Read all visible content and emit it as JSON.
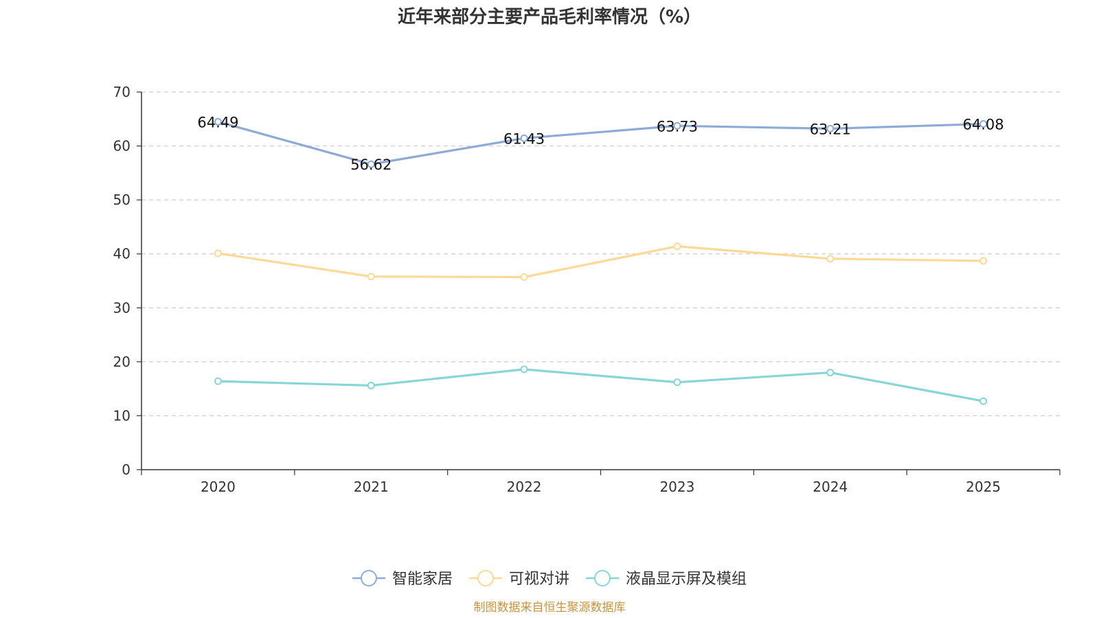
{
  "chart_data": {
    "type": "line",
    "title": "近年来部分主要产品毛利率情况（%）",
    "categories": [
      "2020",
      "2021",
      "2022",
      "2023",
      "2024",
      "2025"
    ],
    "ylim": [
      0,
      70
    ],
    "yticks": [
      0,
      10,
      20,
      30,
      40,
      50,
      60,
      70
    ],
    "grid": true,
    "legend_position": "bottom-center",
    "series": [
      {
        "name": "智能家居",
        "color": "#8eaad8",
        "values": [
          64.49,
          56.62,
          61.43,
          63.73,
          63.21,
          64.08
        ],
        "show_labels": true,
        "labels": [
          "64.49",
          "56.62",
          "61.43",
          "63.73",
          "63.21",
          "64.08"
        ]
      },
      {
        "name": "可视对讲",
        "color": "#fcd994",
        "values": [
          40.1,
          35.8,
          35.7,
          41.4,
          39.1,
          38.7
        ],
        "show_labels": false
      },
      {
        "name": "液晶显示屏及模组",
        "color": "#86d6d6",
        "values": [
          16.4,
          15.6,
          18.6,
          16.2,
          18.0,
          12.7
        ],
        "show_labels": false
      }
    ]
  },
  "source_text": "制图数据来自恒生聚源数据库",
  "source_color": "#c9933a"
}
